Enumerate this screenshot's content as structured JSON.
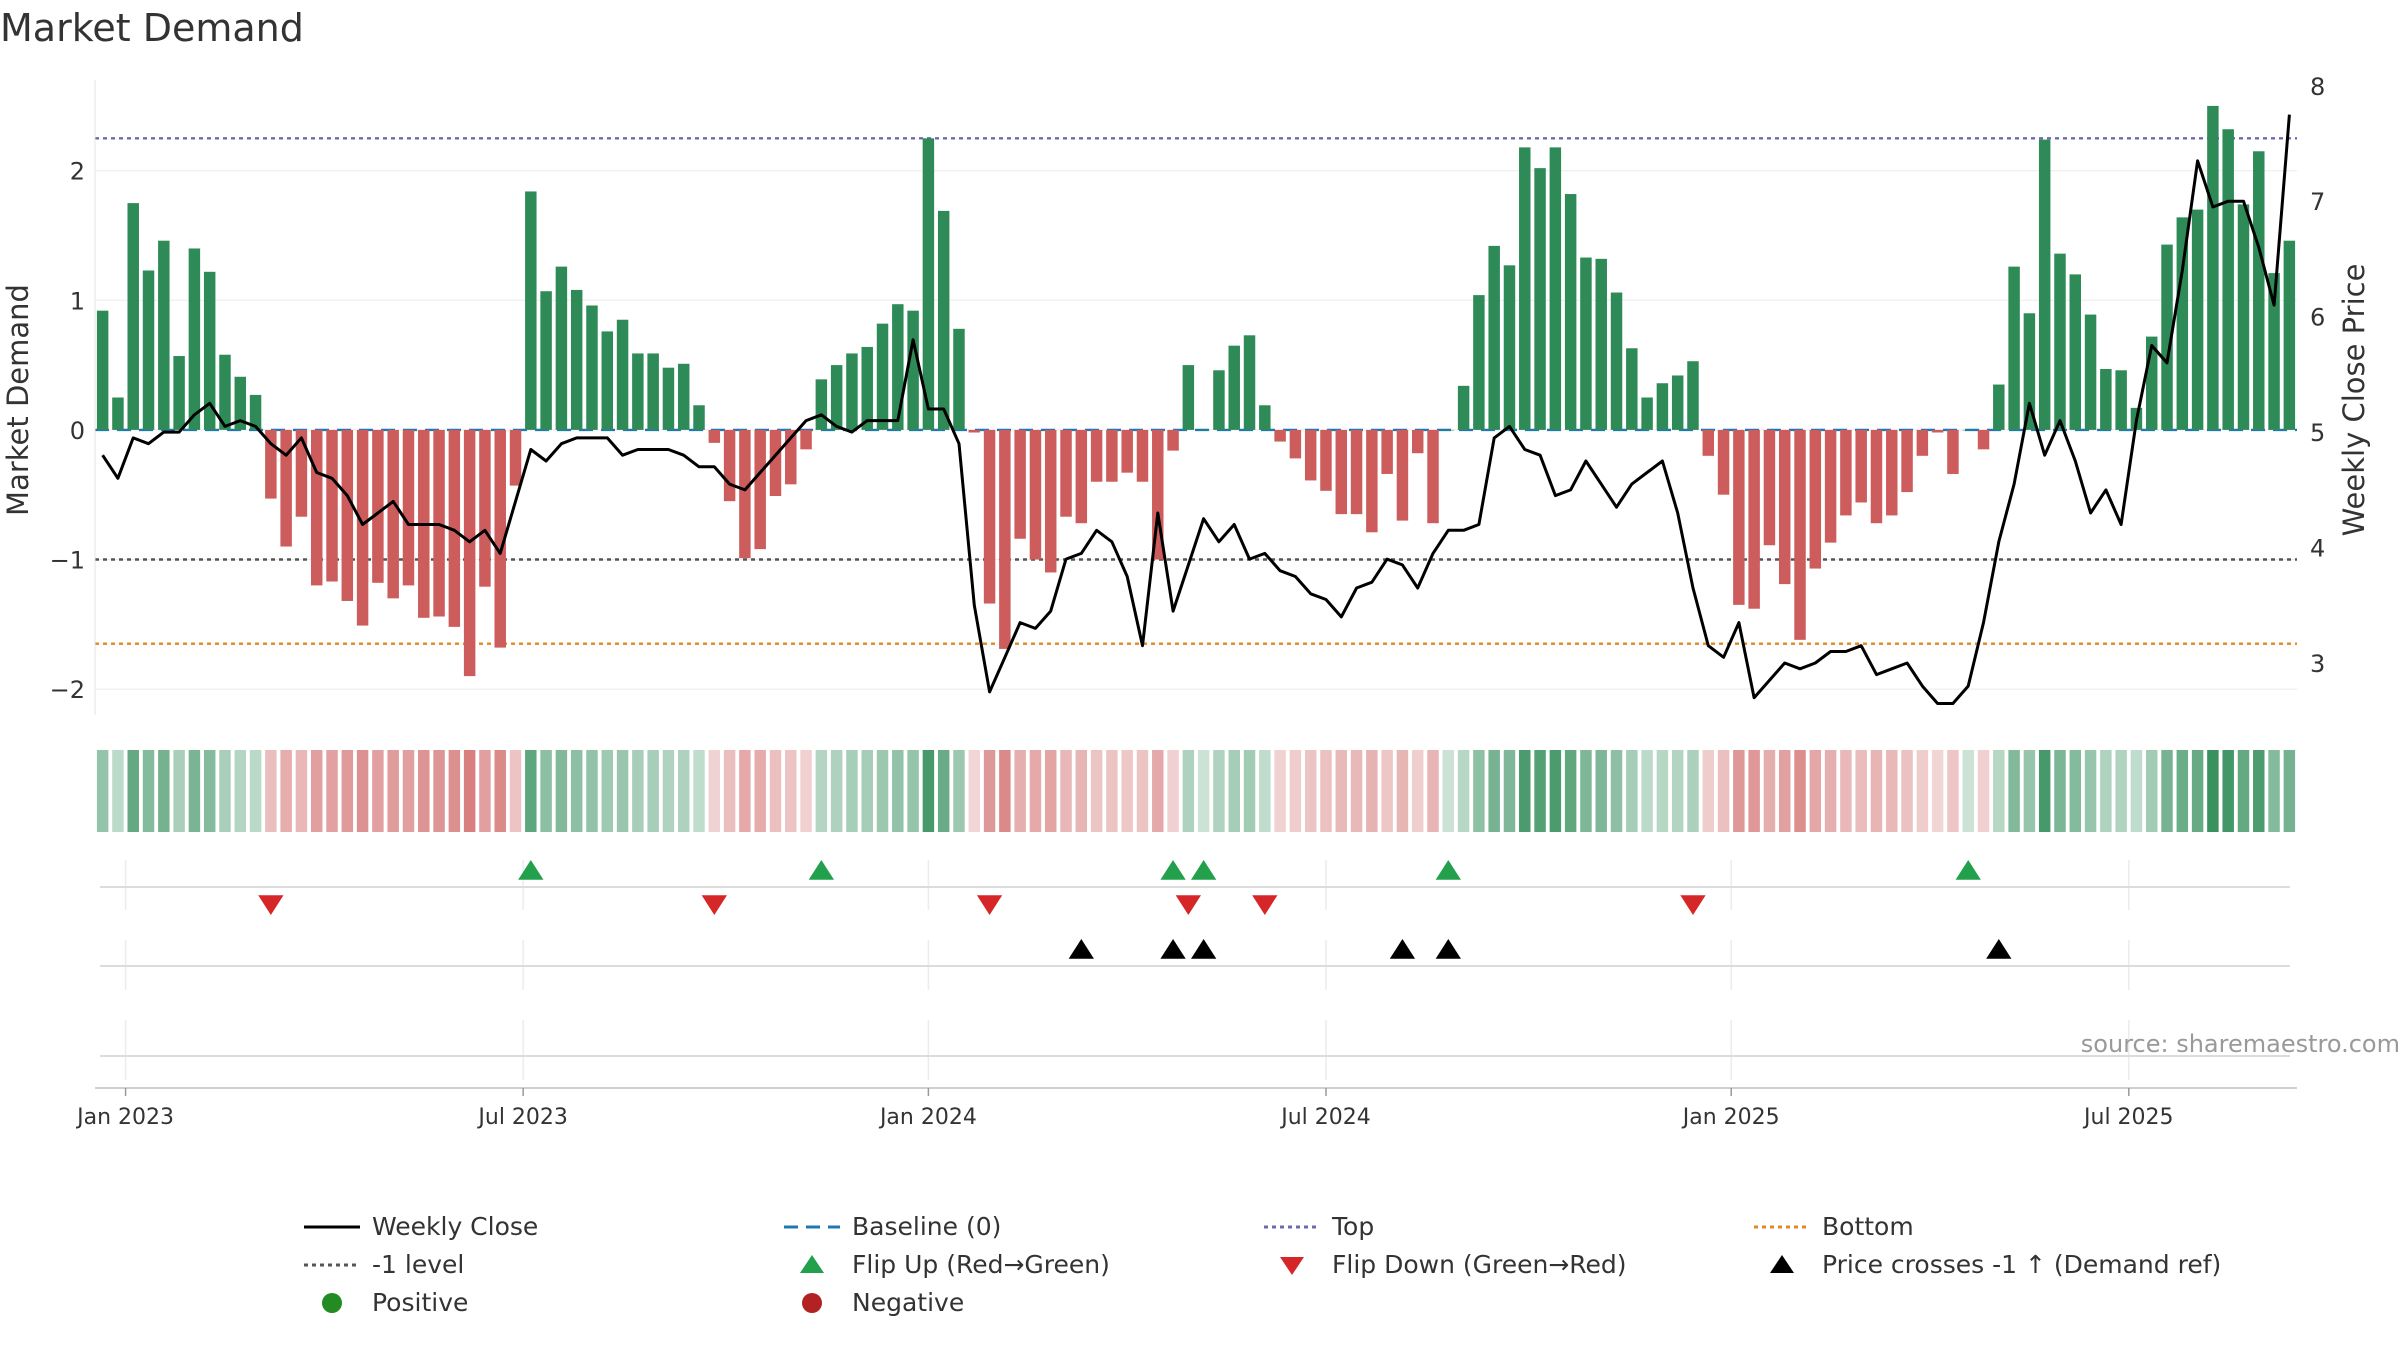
{
  "title": "Market Demand",
  "source": "source: sharemaestro.com",
  "colors": {
    "positive_bar": "#2e8b57",
    "negative_bar": "#cd5c5c",
    "price_line": "#000000",
    "top_line": "#6a6ab0",
    "minus_one_line": "#555555",
    "bottom_line": "#e08a1e",
    "baseline": "#1f77b4",
    "flip_up": "#22a04b",
    "flip_down": "#d62728",
    "cross": "#000000",
    "legend_positive": "#228b22",
    "legend_negative": "#b22222"
  },
  "legend": [
    {
      "key": "weekly_close",
      "label": "Weekly Close",
      "symbol": "line-solid",
      "color": "#000000"
    },
    {
      "key": "baseline",
      "label": "Baseline (0)",
      "symbol": "line-dash",
      "color": "#1f77b4"
    },
    {
      "key": "top",
      "label": "Top",
      "symbol": "line-dot",
      "color": "#6a6ab0"
    },
    {
      "key": "bottom",
      "label": "Bottom",
      "symbol": "line-dot",
      "color": "#e08a1e"
    },
    {
      "key": "minus_one",
      "label": "-1 level",
      "symbol": "line-dot",
      "color": "#555555"
    },
    {
      "key": "flip_up",
      "label": "Flip Up (Red→Green)",
      "symbol": "triangle-up",
      "color": "#22a04b"
    },
    {
      "key": "flip_down",
      "label": "Flip Down (Green→Red)",
      "symbol": "triangle-down",
      "color": "#d62728"
    },
    {
      "key": "cross",
      "label": "Price crosses -1 ↑ (Demand ref)",
      "symbol": "triangle-up",
      "color": "#000000"
    },
    {
      "key": "positive",
      "label": "Positive",
      "symbol": "circle",
      "color": "#228b22"
    },
    {
      "key": "negative",
      "label": "Negative",
      "symbol": "circle",
      "color": "#b22222"
    }
  ],
  "chart_data": {
    "type": "bar",
    "title": "Market Demand",
    "ylabel": "Market Demand",
    "y2label": "Weekly Close Price",
    "ylim": [
      -2.2,
      2.7
    ],
    "y_ticks": [
      -2,
      -1,
      0,
      1,
      2
    ],
    "y2lim": [
      2.55,
      8.05
    ],
    "y2_ticks": [
      3,
      4,
      5,
      6,
      7,
      8
    ],
    "x_ticks": [
      {
        "label": "Jan 2023",
        "week": 2
      },
      {
        "label": "Jul 2023",
        "week": 28
      },
      {
        "label": "Jan 2024",
        "week": 54.5
      },
      {
        "label": "Jul 2024",
        "week": 80.5
      },
      {
        "label": "Jan 2025",
        "week": 107
      },
      {
        "label": "Jul 2025",
        "week": 133
      }
    ],
    "reference_lines": {
      "top": 2.25,
      "minus_one": -1,
      "bottom": -1.65,
      "baseline": 0
    },
    "demand": [
      0.92,
      0.25,
      1.75,
      1.23,
      1.46,
      0.57,
      1.4,
      1.22,
      0.58,
      0.41,
      0.27,
      -0.53,
      -0.9,
      -0.67,
      -1.2,
      -1.17,
      -1.32,
      -1.51,
      -1.18,
      -1.3,
      -1.2,
      -1.45,
      -1.44,
      -1.52,
      -1.9,
      -1.21,
      -1.68,
      -0.43,
      1.84,
      1.07,
      1.26,
      1.08,
      0.96,
      0.76,
      0.85,
      0.59,
      0.59,
      0.48,
      0.51,
      0.19,
      -0.1,
      -0.55,
      -0.99,
      -0.92,
      -0.51,
      -0.42,
      -0.15,
      0.39,
      0.5,
      0.59,
      0.64,
      0.82,
      0.97,
      0.92,
      2.25,
      1.69,
      0.78,
      -0.02,
      -1.34,
      -1.69,
      -0.84,
      -1.0,
      -1.1,
      -0.67,
      -0.72,
      -0.4,
      -0.4,
      -0.33,
      -0.4,
      -1.0,
      -0.16,
      0.5,
      0.0,
      0.46,
      0.65,
      0.73,
      0.19,
      -0.09,
      -0.22,
      -0.39,
      -0.47,
      -0.65,
      -0.65,
      -0.79,
      -0.34,
      -0.7,
      -0.18,
      -0.72,
      0.0,
      0.34,
      1.04,
      1.42,
      1.27,
      2.18,
      2.02,
      2.18,
      1.82,
      1.33,
      1.32,
      1.06,
      0.63,
      0.25,
      0.36,
      0.42,
      0.53,
      -0.2,
      -0.5,
      -1.35,
      -1.38,
      -0.89,
      -1.19,
      -1.62,
      -1.07,
      -0.87,
      -0.66,
      -0.56,
      -0.72,
      -0.66,
      -0.48,
      -0.2,
      -0.02,
      -0.34,
      0.0,
      -0.15,
      0.35,
      1.26,
      0.9,
      2.24,
      1.36,
      1.2,
      0.89,
      0.47,
      0.46,
      0.17,
      0.72,
      1.43,
      1.64,
      1.7,
      2.5,
      2.32,
      1.74,
      2.15,
      1.21,
      1.46
    ],
    "price": [
      4.8,
      4.6,
      4.95,
      4.9,
      5.0,
      5.0,
      5.15,
      5.25,
      5.05,
      5.1,
      5.05,
      4.9,
      4.8,
      4.95,
      4.65,
      4.6,
      4.45,
      4.2,
      4.3,
      4.4,
      4.2,
      4.2,
      4.2,
      4.15,
      4.05,
      4.15,
      3.95,
      4.4,
      4.85,
      4.75,
      4.9,
      4.95,
      4.95,
      4.95,
      4.8,
      4.85,
      4.85,
      4.85,
      4.8,
      4.7,
      4.7,
      4.55,
      4.5,
      4.65,
      4.8,
      4.95,
      5.1,
      5.15,
      5.05,
      5.0,
      5.1,
      5.1,
      5.1,
      5.8,
      5.2,
      5.2,
      4.9,
      3.5,
      2.75,
      3.05,
      3.35,
      3.3,
      3.45,
      3.9,
      3.95,
      4.15,
      4.05,
      3.75,
      3.15,
      4.3,
      3.45,
      3.85,
      4.25,
      4.05,
      4.2,
      3.9,
      3.95,
      3.8,
      3.75,
      3.6,
      3.55,
      3.4,
      3.65,
      3.7,
      3.9,
      3.85,
      3.65,
      3.95,
      4.15,
      4.15,
      4.2,
      4.95,
      5.05,
      4.85,
      4.8,
      4.45,
      4.5,
      4.75,
      4.55,
      4.35,
      4.55,
      4.65,
      4.75,
      4.3,
      3.65,
      3.15,
      3.05,
      3.35,
      2.7,
      2.85,
      3.0,
      2.95,
      3.0,
      3.1,
      3.1,
      3.15,
      2.9,
      2.95,
      3.0,
      2.8,
      2.65,
      2.65,
      2.8,
      3.35,
      4.05,
      4.55,
      5.25,
      4.8,
      5.1,
      4.75,
      4.3,
      4.5,
      4.2,
      5.1,
      5.75,
      5.6,
      6.4,
      7.35,
      6.95,
      7.0,
      7.0,
      6.6,
      6.1,
      7.75
    ],
    "flip_up_weeks": [
      28,
      47,
      70,
      72,
      88,
      122
    ],
    "flip_down_weeks": [
      11,
      40,
      58,
      71,
      76,
      104
    ],
    "price_cross_weeks": [
      64,
      70,
      72,
      85,
      88,
      124
    ]
  }
}
